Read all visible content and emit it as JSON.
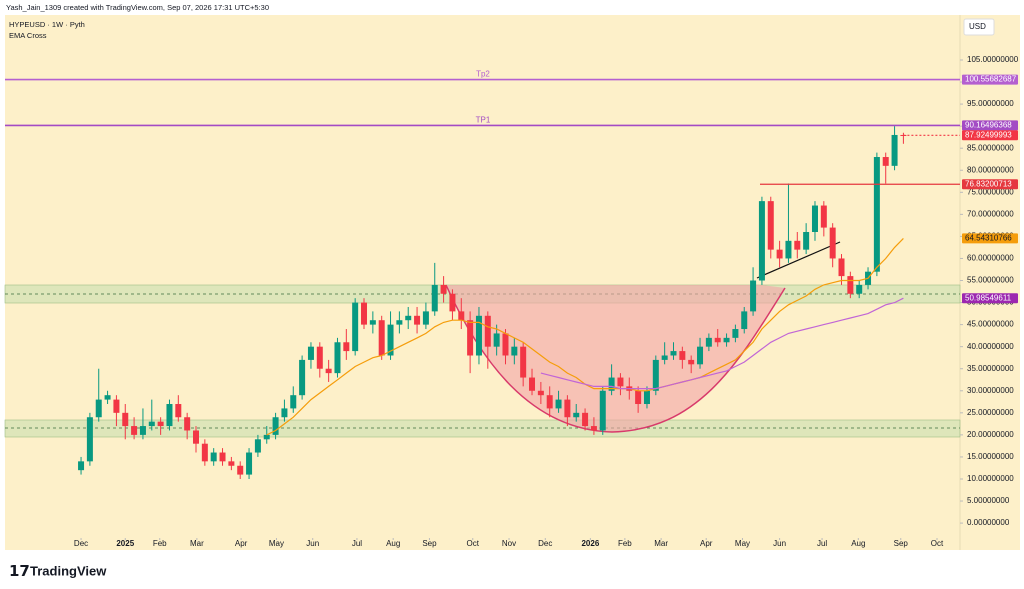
{
  "header": {
    "credit": "Yash_Jain_1309 created with TradingView.com, Sep 07, 2026 17:31 UTC+5:30",
    "symbol": "HYPEUSD · 1W · Pyth",
    "indicator": "EMA Cross",
    "currency": "USD",
    "brand": "TradingView"
  },
  "chart_data": {
    "type": "candlestick",
    "xlim": [
      -8.6,
      99.4
    ],
    "xticks": [
      {
        "value": 0,
        "label": "Dec"
      },
      {
        "value": 5.0,
        "label": "2025"
      },
      {
        "value": 8.9,
        "label": "Feb"
      },
      {
        "value": 13.1,
        "label": "Mar"
      },
      {
        "value": 18.1,
        "label": "Apr"
      },
      {
        "value": 22.1,
        "label": "May"
      },
      {
        "value": 26.2,
        "label": "Jun"
      },
      {
        "value": 31.2,
        "label": "Jul"
      },
      {
        "value": 35.3,
        "label": "Aug"
      },
      {
        "value": 39.4,
        "label": "Sep"
      },
      {
        "value": 44.3,
        "label": "Oct"
      },
      {
        "value": 48.4,
        "label": "Nov"
      },
      {
        "value": 52.5,
        "label": "Dec"
      },
      {
        "value": 57.6,
        "label": "2026"
      },
      {
        "value": 61.5,
        "label": "Feb"
      },
      {
        "value": 65.6,
        "label": "Mar"
      },
      {
        "value": 70.7,
        "label": "Apr"
      },
      {
        "value": 74.8,
        "label": "May"
      },
      {
        "value": 79.0,
        "label": "Jun"
      },
      {
        "value": 83.8,
        "label": "Jul"
      },
      {
        "value": 87.9,
        "label": "Aug"
      },
      {
        "value": 92.7,
        "label": "Sep"
      },
      {
        "value": 96.8,
        "label": "Oct"
      }
    ],
    "ylim": [
      -6.1,
      115.2
    ],
    "yticks": [
      {
        "value": 0,
        "label": "0.00000000"
      },
      {
        "value": 5,
        "label": "5.00000000"
      },
      {
        "value": 10,
        "label": "10.00000000"
      },
      {
        "value": 15,
        "label": "15.00000000"
      },
      {
        "value": 20,
        "label": "20.00000000"
      },
      {
        "value": 25,
        "label": "25.00000000"
      },
      {
        "value": 30,
        "label": "30.00000000"
      },
      {
        "value": 35,
        "label": "35.00000000"
      },
      {
        "value": 40,
        "label": "40.00000000"
      },
      {
        "value": 45,
        "label": "45.00000000"
      },
      {
        "value": 50,
        "label": "50.00000000"
      },
      {
        "value": 55,
        "label": "55.00000000"
      },
      {
        "value": 60,
        "label": "60.00000000"
      },
      {
        "value": 65,
        "label": "65.00000000"
      },
      {
        "value": 70,
        "label": "70.00000000"
      },
      {
        "value": 75,
        "label": "75.00000000"
      },
      {
        "value": 80,
        "label": "80.00000000"
      },
      {
        "value": 85,
        "label": "85.00000000"
      },
      {
        "value": 90,
        "label": "90.00000000"
      },
      {
        "value": 95,
        "label": "95.00000000"
      },
      {
        "value": 100,
        "label": "100.00000000"
      },
      {
        "value": 105,
        "label": "105.00000000"
      }
    ],
    "up_color": "#089981",
    "down_color": "#f23645",
    "open": [
      12,
      14,
      24,
      28,
      28,
      25,
      22,
      20,
      22,
      23,
      22,
      27,
      24,
      21,
      18,
      14,
      16,
      14,
      13,
      11,
      16,
      19,
      20,
      24,
      26,
      29,
      37,
      40,
      35,
      34,
      41,
      39,
      50,
      45,
      46,
      38,
      45,
      46,
      47,
      45,
      48,
      54,
      52,
      48,
      46,
      38,
      47,
      40,
      43,
      38,
      40,
      33,
      30,
      29,
      26,
      28,
      24,
      25,
      22,
      21,
      30,
      33,
      31,
      30,
      27,
      30,
      37,
      38,
      39,
      37,
      36,
      40,
      42,
      41,
      42,
      44,
      48,
      55,
      73,
      62,
      60,
      64,
      62,
      66,
      72,
      67,
      60,
      56,
      52,
      54,
      57,
      83,
      81,
      88
    ],
    "high": [
      15,
      25,
      35,
      30,
      29,
      27,
      24,
      26,
      28,
      24,
      28,
      29,
      25,
      22,
      19,
      17,
      17,
      15,
      14,
      17,
      20,
      22,
      25,
      28,
      31,
      38,
      41,
      41,
      37,
      42,
      44,
      51,
      51,
      48,
      47,
      48,
      48,
      49,
      49,
      50,
      59,
      56,
      53,
      51,
      48,
      49,
      48,
      45,
      44,
      42,
      41,
      35,
      32,
      31,
      30,
      29,
      27,
      26,
      24,
      31,
      36,
      34,
      33,
      31,
      31,
      38,
      41,
      41,
      40,
      38,
      42,
      43,
      44,
      43,
      45,
      49,
      58,
      74,
      74,
      64,
      77,
      66,
      68,
      73,
      73,
      68,
      61,
      57,
      55,
      58,
      84,
      84,
      90,
      88.5
    ],
    "low": [
      11,
      13,
      23,
      27,
      22,
      19,
      19,
      19,
      21,
      20,
      21,
      23,
      19,
      16,
      13,
      13,
      13,
      12,
      10,
      10,
      15,
      18,
      19,
      23,
      25,
      28,
      35,
      33,
      32,
      33,
      37,
      38,
      44,
      43,
      37,
      37,
      43,
      44,
      43,
      44,
      47,
      50,
      46,
      44,
      34,
      36,
      35,
      38,
      36,
      36,
      31,
      29,
      27,
      24,
      25,
      22,
      23,
      21,
      20,
      20,
      29,
      29,
      28,
      25,
      26,
      29,
      36,
      37,
      35,
      34,
      35,
      39,
      40,
      40,
      41,
      43,
      47,
      54,
      60,
      58,
      59,
      60,
      61,
      64,
      65,
      58,
      54,
      51,
      51,
      53,
      56,
      77,
      80,
      86
    ],
    "close": [
      14,
      24,
      28,
      29,
      25,
      22,
      20,
      22,
      23,
      22,
      27,
      24,
      21,
      18,
      14,
      16,
      14,
      13,
      11,
      16,
      19,
      20,
      24,
      26,
      29,
      37,
      40,
      35,
      34,
      41,
      39,
      50,
      45,
      46,
      38,
      45,
      46,
      47,
      45,
      48,
      54,
      52,
      48,
      46,
      38,
      47,
      40,
      43,
      38,
      40,
      33,
      30,
      29,
      26,
      28,
      24,
      25,
      22,
      21,
      30,
      33,
      31,
      30,
      27,
      30,
      37,
      38,
      39,
      37,
      36,
      40,
      42,
      41,
      42,
      44,
      48,
      55,
      73,
      62,
      60,
      64,
      62,
      66,
      72,
      67,
      60,
      56,
      52,
      54,
      57,
      83,
      81,
      88,
      87.92499993
    ],
    "series": [
      {
        "color": "#f59d0b",
        "values": [
          null,
          null,
          null,
          null,
          null,
          null,
          null,
          null,
          null,
          null,
          null,
          null,
          null,
          null,
          null,
          null,
          null,
          null,
          null,
          null,
          null,
          20,
          21,
          22.5,
          24,
          26,
          28,
          29.5,
          31,
          32.5,
          34,
          35.5,
          36.5,
          37.5,
          38,
          39,
          40,
          41,
          42,
          43,
          44.5,
          45.5,
          46,
          46,
          45.5,
          45.5,
          44.5,
          44,
          43,
          42,
          41,
          39.5,
          38,
          36.5,
          35.5,
          34,
          33,
          31.5,
          30.5,
          30.5,
          30.5,
          30.5,
          30.5,
          30,
          30,
          30.5,
          31,
          31.5,
          32,
          32.5,
          33,
          34,
          35,
          36,
          37,
          39,
          41,
          44,
          46,
          48,
          49.5,
          50.5,
          51.5,
          53,
          54,
          54.5,
          55,
          55,
          55,
          55.5,
          58,
          60,
          62.5,
          64.54310766
        ]
      },
      {
        "color": "#c165d6",
        "values": [
          null,
          null,
          null,
          null,
          null,
          null,
          null,
          null,
          null,
          null,
          null,
          null,
          null,
          null,
          null,
          null,
          null,
          null,
          null,
          null,
          null,
          null,
          null,
          null,
          null,
          null,
          null,
          null,
          null,
          null,
          null,
          null,
          null,
          null,
          null,
          null,
          null,
          null,
          null,
          null,
          null,
          null,
          null,
          null,
          null,
          null,
          null,
          null,
          null,
          null,
          null,
          null,
          34,
          33.5,
          33,
          32.5,
          32,
          31.5,
          31,
          31,
          31,
          30.5,
          30.5,
          30.5,
          30.5,
          30.5,
          31,
          31.5,
          32,
          32.5,
          33,
          33.5,
          34,
          34.5,
          35.5,
          36.5,
          38,
          39.5,
          41,
          42,
          43,
          43.5,
          44,
          44.5,
          45,
          45.5,
          46,
          46.5,
          47,
          47.5,
          48.5,
          49.5,
          50,
          50.98549611
        ]
      }
    ],
    "price_lines": [
      {
        "name": "Tp2",
        "value": 100.55682687,
        "color": "#b45fd0"
      },
      {
        "name": "TP1",
        "value": 90.16496368,
        "color": "#a34bc4"
      },
      {
        "value": 87.92499993,
        "color": "#f23645"
      },
      {
        "value": 76.83200713,
        "color": "#e5383f"
      },
      {
        "value": 64.54310766,
        "color": "#f59d0b"
      },
      {
        "value": 50.98549611,
        "color": "#9c27b0"
      }
    ]
  }
}
